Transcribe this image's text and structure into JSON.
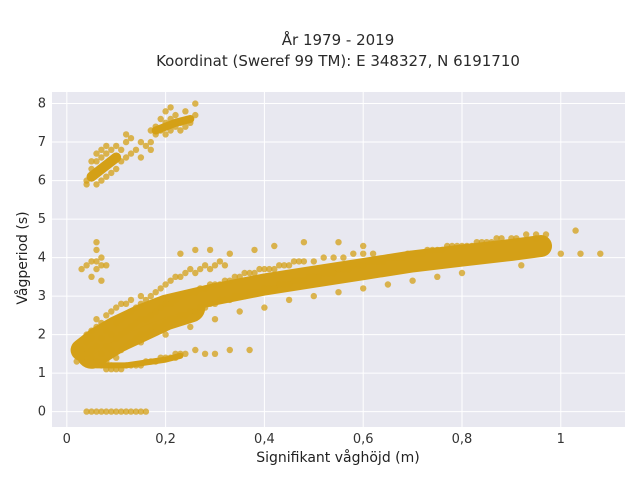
{
  "chart_data": {
    "type": "scatter",
    "title": "År 1979 - 2019",
    "subtitle": "Koordinat (Sweref 99 TM): E 348327, N 6191710",
    "xlabel": "Signifikant våghöjd (m)",
    "ylabel": "Vågperiod (s)",
    "xlim": [
      -0.03,
      1.13
    ],
    "ylim": [
      -0.4,
      8.3
    ],
    "xticks": [
      0,
      0.2,
      0.4,
      0.6,
      0.8,
      1
    ],
    "xtick_labels": [
      "0",
      "0,2",
      "0,4",
      "0,6",
      "0,8",
      "1"
    ],
    "yticks": [
      0,
      1,
      2,
      3,
      4,
      5,
      6,
      7,
      8
    ],
    "ytick_labels": [
      "0",
      "1",
      "2",
      "3",
      "4",
      "5",
      "6",
      "7",
      "8"
    ],
    "grid": true,
    "marker_color": "#D4A017",
    "background_color": "#E8E8F0",
    "series": [
      {
        "values": [
          [
            0.02,
            1.3
          ],
          [
            0.02,
            1.5
          ],
          [
            0.02,
            1.7
          ],
          [
            0.03,
            1.4
          ],
          [
            0.03,
            1.6
          ],
          [
            0.04,
            1.5
          ],
          [
            0.04,
            1.8
          ],
          [
            0.04,
            2.0
          ],
          [
            0.05,
            1.4
          ],
          [
            0.05,
            1.6
          ],
          [
            0.05,
            1.9
          ],
          [
            0.05,
            2.1
          ],
          [
            0.06,
            1.3
          ],
          [
            0.06,
            1.7
          ],
          [
            0.06,
            2.2
          ],
          [
            0.06,
            2.4
          ],
          [
            0.07,
            1.2
          ],
          [
            0.07,
            1.5
          ],
          [
            0.07,
            1.9
          ],
          [
            0.07,
            2.3
          ],
          [
            0.08,
            1.3
          ],
          [
            0.08,
            1.7
          ],
          [
            0.08,
            2.1
          ],
          [
            0.08,
            2.5
          ],
          [
            0.09,
            1.2
          ],
          [
            0.09,
            1.6
          ],
          [
            0.09,
            2.0
          ],
          [
            0.09,
            2.6
          ],
          [
            0.1,
            1.4
          ],
          [
            0.1,
            1.9
          ],
          [
            0.1,
            2.3
          ],
          [
            0.1,
            2.7
          ],
          [
            0.11,
            1.6
          ],
          [
            0.11,
            2.0
          ],
          [
            0.11,
            2.4
          ],
          [
            0.11,
            2.8
          ],
          [
            0.12,
            1.7
          ],
          [
            0.12,
            2.1
          ],
          [
            0.12,
            2.5
          ],
          [
            0.12,
            2.8
          ],
          [
            0.13,
            1.8
          ],
          [
            0.13,
            2.2
          ],
          [
            0.13,
            2.6
          ],
          [
            0.13,
            2.9
          ],
          [
            0.14,
            1.9
          ],
          [
            0.14,
            2.3
          ],
          [
            0.14,
            2.7
          ],
          [
            0.15,
            2.0
          ],
          [
            0.15,
            2.4
          ],
          [
            0.15,
            2.8
          ],
          [
            0.15,
            3.0
          ],
          [
            0.16,
            2.0
          ],
          [
            0.16,
            2.4
          ],
          [
            0.16,
            2.9
          ],
          [
            0.17,
            2.1
          ],
          [
            0.17,
            2.5
          ],
          [
            0.17,
            3.0
          ],
          [
            0.18,
            2.2
          ],
          [
            0.18,
            2.6
          ],
          [
            0.18,
            3.1
          ],
          [
            0.19,
            2.2
          ],
          [
            0.19,
            2.7
          ],
          [
            0.19,
            3.2
          ],
          [
            0.2,
            2.3
          ],
          [
            0.2,
            2.8
          ],
          [
            0.2,
            3.3
          ],
          [
            0.21,
            2.4
          ],
          [
            0.21,
            2.8
          ],
          [
            0.21,
            3.4
          ],
          [
            0.22,
            2.4
          ],
          [
            0.22,
            2.9
          ],
          [
            0.22,
            3.5
          ],
          [
            0.23,
            2.5
          ],
          [
            0.23,
            3.0
          ],
          [
            0.23,
            3.5
          ],
          [
            0.24,
            2.5
          ],
          [
            0.24,
            3.0
          ],
          [
            0.24,
            3.6
          ],
          [
            0.25,
            2.6
          ],
          [
            0.25,
            3.1
          ],
          [
            0.25,
            3.7
          ],
          [
            0.26,
            2.6
          ],
          [
            0.26,
            3.1
          ],
          [
            0.26,
            3.6
          ],
          [
            0.27,
            2.7
          ],
          [
            0.27,
            3.2
          ],
          [
            0.27,
            3.7
          ],
          [
            0.28,
            2.7
          ],
          [
            0.28,
            3.2
          ],
          [
            0.28,
            3.8
          ],
          [
            0.29,
            2.8
          ],
          [
            0.29,
            3.3
          ],
          [
            0.29,
            3.7
          ],
          [
            0.3,
            2.8
          ],
          [
            0.3,
            3.3
          ],
          [
            0.3,
            3.8
          ],
          [
            0.31,
            2.9
          ],
          [
            0.31,
            3.3
          ],
          [
            0.31,
            3.9
          ],
          [
            0.32,
            2.9
          ],
          [
            0.32,
            3.4
          ],
          [
            0.32,
            3.8
          ],
          [
            0.33,
            2.9
          ],
          [
            0.33,
            3.4
          ],
          [
            0.34,
            3.0
          ],
          [
            0.34,
            3.5
          ],
          [
            0.35,
            3.0
          ],
          [
            0.35,
            3.5
          ],
          [
            0.36,
            3.0
          ],
          [
            0.36,
            3.6
          ],
          [
            0.37,
            3.1
          ],
          [
            0.37,
            3.6
          ],
          [
            0.38,
            3.1
          ],
          [
            0.38,
            3.6
          ],
          [
            0.39,
            3.1
          ],
          [
            0.39,
            3.7
          ],
          [
            0.4,
            3.2
          ],
          [
            0.4,
            3.7
          ],
          [
            0.41,
            3.2
          ],
          [
            0.41,
            3.7
          ],
          [
            0.42,
            3.2
          ],
          [
            0.42,
            3.7
          ],
          [
            0.43,
            3.3
          ],
          [
            0.43,
            3.8
          ],
          [
            0.44,
            3.3
          ],
          [
            0.44,
            3.8
          ],
          [
            0.45,
            3.3
          ],
          [
            0.45,
            3.8
          ],
          [
            0.46,
            3.4
          ],
          [
            0.46,
            3.9
          ],
          [
            0.47,
            3.4
          ],
          [
            0.47,
            3.9
          ],
          [
            0.48,
            3.4
          ],
          [
            0.48,
            3.9
          ],
          [
            0.49,
            3.5
          ],
          [
            0.5,
            3.5
          ],
          [
            0.5,
            3.9
          ],
          [
            0.51,
            3.5
          ],
          [
            0.52,
            3.6
          ],
          [
            0.52,
            4.0
          ],
          [
            0.53,
            3.6
          ],
          [
            0.54,
            3.6
          ],
          [
            0.54,
            4.0
          ],
          [
            0.55,
            3.7
          ],
          [
            0.56,
            3.7
          ],
          [
            0.56,
            4.0
          ],
          [
            0.57,
            3.7
          ],
          [
            0.58,
            3.8
          ],
          [
            0.58,
            4.1
          ],
          [
            0.59,
            3.8
          ],
          [
            0.6,
            3.8
          ],
          [
            0.6,
            4.1
          ],
          [
            0.61,
            3.9
          ],
          [
            0.62,
            3.9
          ],
          [
            0.62,
            4.1
          ],
          [
            0.63,
            3.9
          ],
          [
            0.64,
            3.9
          ],
          [
            0.65,
            4.0
          ],
          [
            0.66,
            4.0
          ],
          [
            0.67,
            4.0
          ],
          [
            0.68,
            4.0
          ],
          [
            0.69,
            4.1
          ],
          [
            0.7,
            4.1
          ],
          [
            0.71,
            4.1
          ],
          [
            0.72,
            4.1
          ],
          [
            0.73,
            4.2
          ],
          [
            0.74,
            4.2
          ],
          [
            0.75,
            4.2
          ],
          [
            0.76,
            4.2
          ],
          [
            0.77,
            4.3
          ],
          [
            0.78,
            4.3
          ],
          [
            0.79,
            4.3
          ],
          [
            0.8,
            4.3
          ],
          [
            0.81,
            4.3
          ],
          [
            0.82,
            4.3
          ],
          [
            0.83,
            4.4
          ],
          [
            0.84,
            4.4
          ],
          [
            0.85,
            4.4
          ],
          [
            0.86,
            4.4
          ],
          [
            0.87,
            4.5
          ],
          [
            0.88,
            4.5
          ],
          [
            0.9,
            4.5
          ],
          [
            0.91,
            4.5
          ],
          [
            0.93,
            4.6
          ],
          [
            0.95,
            4.6
          ],
          [
            0.97,
            4.6
          ],
          [
            1.0,
            4.1
          ],
          [
            1.04,
            4.1
          ],
          [
            1.08,
            4.1
          ],
          [
            1.03,
            4.7
          ],
          [
            0.95,
            4.5
          ],
          [
            0.92,
            3.8
          ],
          [
            0.8,
            3.6
          ],
          [
            0.75,
            3.5
          ],
          [
            0.7,
            3.4
          ],
          [
            0.65,
            3.3
          ],
          [
            0.6,
            3.2
          ],
          [
            0.55,
            3.1
          ],
          [
            0.5,
            3.0
          ],
          [
            0.45,
            2.9
          ],
          [
            0.4,
            2.7
          ],
          [
            0.35,
            2.6
          ],
          [
            0.3,
            2.4
          ],
          [
            0.25,
            2.2
          ],
          [
            0.2,
            2.0
          ],
          [
            0.15,
            1.8
          ],
          [
            0.6,
            4.3
          ],
          [
            0.55,
            4.4
          ],
          [
            0.48,
            4.4
          ],
          [
            0.42,
            4.3
          ],
          [
            0.38,
            4.2
          ],
          [
            0.33,
            4.1
          ],
          [
            0.29,
            4.2
          ],
          [
            0.26,
            4.2
          ],
          [
            0.23,
            4.1
          ],
          [
            0.37,
            1.6
          ],
          [
            0.33,
            1.6
          ],
          [
            0.3,
            1.5
          ],
          [
            0.28,
            1.5
          ],
          [
            0.26,
            1.6
          ],
          [
            0.24,
            1.5
          ],
          [
            0.22,
            1.4
          ],
          [
            0.08,
            1.1
          ],
          [
            0.09,
            1.1
          ],
          [
            0.1,
            1.1
          ],
          [
            0.11,
            1.1
          ],
          [
            0.12,
            1.2
          ],
          [
            0.13,
            1.2
          ],
          [
            0.14,
            1.2
          ],
          [
            0.15,
            1.2
          ],
          [
            0.16,
            1.3
          ],
          [
            0.17,
            1.3
          ],
          [
            0.18,
            1.3
          ],
          [
            0.19,
            1.4
          ],
          [
            0.2,
            1.4
          ],
          [
            0.21,
            1.4
          ],
          [
            0.22,
            1.5
          ],
          [
            0.23,
            1.5
          ],
          [
            0.04,
            5.9
          ],
          [
            0.04,
            6.0
          ],
          [
            0.05,
            6.1
          ],
          [
            0.05,
            6.3
          ],
          [
            0.05,
            6.5
          ],
          [
            0.06,
            5.9
          ],
          [
            0.06,
            6.2
          ],
          [
            0.06,
            6.5
          ],
          [
            0.06,
            6.7
          ],
          [
            0.07,
            6.0
          ],
          [
            0.07,
            6.3
          ],
          [
            0.07,
            6.6
          ],
          [
            0.07,
            6.8
          ],
          [
            0.08,
            6.1
          ],
          [
            0.08,
            6.4
          ],
          [
            0.08,
            6.7
          ],
          [
            0.08,
            6.9
          ],
          [
            0.09,
            6.2
          ],
          [
            0.09,
            6.5
          ],
          [
            0.09,
            6.8
          ],
          [
            0.1,
            6.3
          ],
          [
            0.1,
            6.6
          ],
          [
            0.1,
            6.9
          ],
          [
            0.11,
            6.5
          ],
          [
            0.11,
            6.8
          ],
          [
            0.12,
            6.6
          ],
          [
            0.12,
            7.0
          ],
          [
            0.12,
            7.2
          ],
          [
            0.13,
            6.7
          ],
          [
            0.13,
            7.1
          ],
          [
            0.14,
            6.8
          ],
          [
            0.15,
            6.6
          ],
          [
            0.15,
            7.0
          ],
          [
            0.16,
            6.9
          ],
          [
            0.17,
            6.8
          ],
          [
            0.17,
            7.0
          ],
          [
            0.17,
            7.3
          ],
          [
            0.18,
            7.2
          ],
          [
            0.18,
            7.4
          ],
          [
            0.19,
            7.3
          ],
          [
            0.19,
            7.6
          ],
          [
            0.2,
            7.2
          ],
          [
            0.2,
            7.5
          ],
          [
            0.2,
            7.8
          ],
          [
            0.21,
            7.3
          ],
          [
            0.21,
            7.6
          ],
          [
            0.21,
            7.9
          ],
          [
            0.22,
            7.4
          ],
          [
            0.22,
            7.7
          ],
          [
            0.23,
            7.3
          ],
          [
            0.23,
            7.5
          ],
          [
            0.24,
            7.4
          ],
          [
            0.24,
            7.8
          ],
          [
            0.25,
            7.5
          ],
          [
            0.26,
            7.7
          ],
          [
            0.26,
            8.0
          ],
          [
            0.03,
            3.7
          ],
          [
            0.04,
            3.8
          ],
          [
            0.05,
            3.5
          ],
          [
            0.05,
            3.9
          ],
          [
            0.06,
            3.7
          ],
          [
            0.06,
            4.2
          ],
          [
            0.06,
            4.4
          ],
          [
            0.07,
            3.8
          ],
          [
            0.07,
            4.0
          ],
          [
            0.07,
            3.4
          ],
          [
            0.08,
            3.8
          ],
          [
            0.06,
            3.9
          ],
          [
            0.04,
            0.0
          ],
          [
            0.05,
            0.0
          ],
          [
            0.06,
            0.0
          ],
          [
            0.07,
            0.0
          ],
          [
            0.08,
            0.0
          ],
          [
            0.09,
            0.0
          ],
          [
            0.1,
            0.0
          ],
          [
            0.11,
            0.0
          ],
          [
            0.12,
            0.0
          ],
          [
            0.13,
            0.0
          ],
          [
            0.14,
            0.0
          ],
          [
            0.15,
            0.0
          ],
          [
            0.16,
            0.0
          ]
        ]
      }
    ]
  }
}
